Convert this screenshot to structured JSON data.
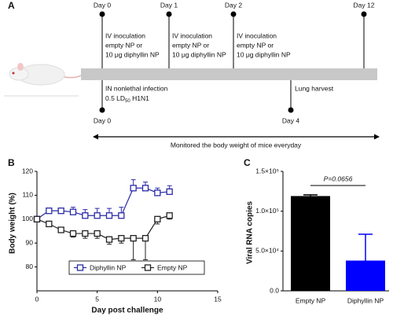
{
  "panels": [
    "A",
    "B",
    "C"
  ],
  "timeline": {
    "top_days": [
      "Day 0",
      "Day 1",
      "Day 2",
      "Day 12"
    ],
    "top_notes": [
      [
        "IV inoculation",
        "empty NP or",
        "10 μg diphyllin NP"
      ],
      [
        "IV inoculation",
        "empty NP or",
        "10 μg diphyllin NP"
      ],
      [
        "IV inoculation",
        "empty NP or",
        "10 μg diphyllin NP"
      ]
    ],
    "bottom_days": [
      "Day 0",
      "Day 4"
    ],
    "infection": {
      "line1": "IN nonlethal infection",
      "line2_parts": [
        "0.5 LD",
        "50",
        " H1N1"
      ]
    },
    "harvest": "Lung harvest",
    "monitor": "Monitored the body weight of mice everyday"
  },
  "chart_data": [
    {
      "type": "line",
      "xlabel": "Day post challenge",
      "ylabel": "Body weight (%)",
      "x": [
        0,
        1,
        2,
        3,
        4,
        5,
        6,
        7,
        8,
        9,
        10,
        11
      ],
      "series": [
        {
          "name": "Diphyllin NP",
          "color": "#2b2ba8",
          "values": [
            100,
            103.5,
            103.5,
            103,
            101.5,
            101.5,
            101.5,
            101.5,
            113,
            113,
            111,
            111.5
          ],
          "errors": [
            0.5,
            0.5,
            1,
            2,
            2.5,
            3,
            3,
            3.5,
            3.5,
            2.5,
            2,
            2.5
          ]
        },
        {
          "name": "Empty NP",
          "color": "#222222",
          "values": [
            100,
            98,
            95.5,
            94,
            94,
            94,
            91.5,
            92,
            92,
            92,
            100,
            101.5
          ],
          "errors": [
            0.5,
            0.5,
            1,
            1.5,
            2,
            2,
            2,
            2,
            9,
            9,
            2,
            1.5
          ]
        }
      ],
      "xlim": [
        0,
        15
      ],
      "xticks": [
        0,
        5,
        10,
        15
      ],
      "ylim": [
        70,
        120
      ],
      "yticks": [
        80,
        90,
        100,
        110,
        120
      ],
      "legend": "bottom"
    },
    {
      "type": "bar",
      "ylabel": "Viral RNA copies",
      "categories": [
        "Empty NP",
        "Diphyllin NP"
      ],
      "values": [
        119000,
        38000
      ],
      "errors": [
        1500,
        33000
      ],
      "colors": [
        "#000000",
        "#0000ff"
      ],
      "ylim": [
        0,
        150000
      ],
      "yticks": [
        {
          "value": 0,
          "label": "0.0"
        },
        {
          "value": 50000,
          "label": "5.0×10⁴"
        },
        {
          "value": 100000,
          "label": "1.0×10⁵"
        },
        {
          "value": 150000,
          "label": "1.5×10⁵"
        }
      ],
      "annotation": "P=0.0656"
    }
  ]
}
